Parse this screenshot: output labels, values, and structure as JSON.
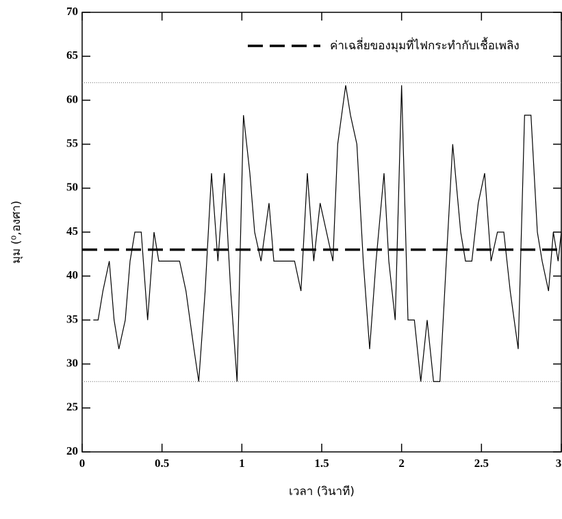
{
  "chart_data": {
    "type": "line",
    "x_label": "เวลา (วินาที)",
    "y_label": "มุม (⁰,องศา)",
    "x": [
      0.07,
      0.1,
      0.13,
      0.17,
      0.2,
      0.23,
      0.27,
      0.3,
      0.33,
      0.37,
      0.41,
      0.45,
      0.48,
      0.52,
      0.56,
      0.61,
      0.65,
      0.7,
      0.73,
      0.77,
      0.81,
      0.85,
      0.89,
      0.93,
      0.97,
      1.01,
      1.05,
      1.08,
      1.12,
      1.17,
      1.2,
      1.25,
      1.29,
      1.33,
      1.37,
      1.41,
      1.45,
      1.49,
      1.53,
      1.57,
      1.6,
      1.65,
      1.68,
      1.72,
      1.76,
      1.8,
      1.84,
      1.89,
      1.92,
      1.96,
      2.0,
      2.04,
      2.08,
      2.12,
      2.16,
      2.2,
      2.24,
      2.28,
      2.32,
      2.37,
      2.4,
      2.44,
      2.48,
      2.52,
      2.56,
      2.6,
      2.64,
      2.68,
      2.73,
      2.77,
      2.81,
      2.85,
      2.88,
      2.92,
      2.95,
      2.98,
      3.0
    ],
    "values": [
      35,
      35,
      38.3,
      41.7,
      35,
      31.7,
      35,
      41.7,
      45,
      45,
      35,
      45,
      41.7,
      41.7,
      41.7,
      41.7,
      38.3,
      31.7,
      28,
      38.3,
      51.7,
      41.7,
      51.7,
      38.3,
      28,
      58.3,
      51.7,
      45,
      41.7,
      48.3,
      41.7,
      41.7,
      41.7,
      41.7,
      38.3,
      51.7,
      41.7,
      48.3,
      45,
      41.7,
      55,
      61.7,
      58.3,
      55,
      41.7,
      31.7,
      41.7,
      51.7,
      41.7,
      35,
      61.7,
      35,
      35,
      28,
      35,
      28,
      28,
      41.7,
      55,
      45,
      41.7,
      41.7,
      48.3,
      51.7,
      41.7,
      45,
      45,
      38.3,
      31.7,
      58.3,
      58.3,
      45,
      41.7,
      38.3,
      45,
      41.7,
      45
    ],
    "color": "#000000",
    "mean_line": {
      "label": "ค่าเฉลี่ยของมุมที่ไฟกระทำกับเชื้อเพลิง",
      "value": 43
    },
    "reference_lines": [
      62,
      28
    ],
    "xlim": [
      0,
      3
    ],
    "xticks": [
      0,
      0.5,
      1,
      1.5,
      2,
      2.5,
      3
    ],
    "ylim": [
      20,
      70
    ],
    "yticks": [
      20,
      25,
      30,
      35,
      40,
      45,
      50,
      55,
      60,
      65,
      70
    ]
  }
}
